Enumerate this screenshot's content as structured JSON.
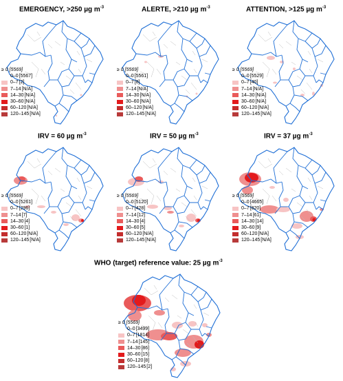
{
  "panels": [
    {
      "id": "emergency",
      "title": "EMERGENCY, >250 µg m",
      "title_sup": "-3",
      "legend_header": "≥ 0 [5569]",
      "classes": [
        {
          "range": "0–0",
          "count": "[5567]"
        },
        {
          "range": "0–7",
          "count": "[2]"
        },
        {
          "range": "7–14",
          "count": "[N/A]"
        },
        {
          "range": "14–30",
          "count": "[N/A]"
        },
        {
          "range": "30–60",
          "count": "[N/A]"
        },
        {
          "range": "60–120",
          "count": "[N/A]"
        },
        {
          "range": "120–145",
          "count": "[N/A]"
        }
      ]
    },
    {
      "id": "alerte",
      "title": "ALERTE, >210 µg m",
      "title_sup": "-3",
      "legend_header": "≥ 0 [5569]",
      "classes": [
        {
          "range": "0–0",
          "count": "[5561]"
        },
        {
          "range": "0–7",
          "count": "[8]"
        },
        {
          "range": "7–14",
          "count": "[N/A]"
        },
        {
          "range": "14–30",
          "count": "[N/A]"
        },
        {
          "range": "30–60",
          "count": "[N/A]"
        },
        {
          "range": "60–120",
          "count": "[N/A]"
        },
        {
          "range": "120–145",
          "count": "[N/A]"
        }
      ]
    },
    {
      "id": "attention",
      "title": "ATTENTION, >125 µg m",
      "title_sup": "-3",
      "legend_header": "≥ 0 [5569]",
      "classes": [
        {
          "range": "0–0",
          "count": "[5529]"
        },
        {
          "range": "0–7",
          "count": "[40]"
        },
        {
          "range": "7–14",
          "count": "[N/A]"
        },
        {
          "range": "14–30",
          "count": "[N/A]"
        },
        {
          "range": "30–60",
          "count": "[N/A]"
        },
        {
          "range": "60–120",
          "count": "[N/A]"
        },
        {
          "range": "120–145",
          "count": "[N/A]"
        }
      ]
    },
    {
      "id": "irv60",
      "title": "IRV = 60 µg m",
      "title_sup": "-3",
      "legend_header": "≥ 0 [5569]",
      "classes": [
        {
          "range": "0–0",
          "count": "[5261]"
        },
        {
          "range": "0–7",
          "count": "[296]"
        },
        {
          "range": "7–14",
          "count": "[7]"
        },
        {
          "range": "14–30",
          "count": "[4]"
        },
        {
          "range": "30–60",
          "count": "[1]"
        },
        {
          "range": "60–120",
          "count": "[N/A]"
        },
        {
          "range": "120–145",
          "count": "[N/A]"
        }
      ]
    },
    {
      "id": "irv50",
      "title": "IRV = 50 µg m",
      "title_sup": "-3",
      "legend_header": "≥ 0 [5569]",
      "classes": [
        {
          "range": "0–0",
          "count": "[5120]"
        },
        {
          "range": "0–7",
          "count": "[428]"
        },
        {
          "range": "7–14",
          "count": "[12]"
        },
        {
          "range": "14–30",
          "count": "[4]"
        },
        {
          "range": "30–60",
          "count": "[5]"
        },
        {
          "range": "60–120",
          "count": "[N/A]"
        },
        {
          "range": "120–145",
          "count": "[N/A]"
        }
      ]
    },
    {
      "id": "irv37",
      "title": "IRV = 37 µg m",
      "title_sup": "-3",
      "legend_header": "≥ 0 [5569]",
      "classes": [
        {
          "range": "0–0",
          "count": "[4665]"
        },
        {
          "range": "0–7",
          "count": "[820]"
        },
        {
          "range": "7–14",
          "count": "[61]"
        },
        {
          "range": "14–30",
          "count": "[14]"
        },
        {
          "range": "30–60",
          "count": "[9]"
        },
        {
          "range": "60–120",
          "count": "[N/A]"
        },
        {
          "range": "120–145",
          "count": "[N/A]"
        }
      ]
    },
    {
      "id": "who",
      "title": "WHO (target) reference value: 25 µg m",
      "title_sup": "-3",
      "legend_header": "≥ 0 [5569]",
      "classes": [
        {
          "range": "0–0",
          "count": "[3499]"
        },
        {
          "range": "0–7",
          "count": "[1814]"
        },
        {
          "range": "7–14",
          "count": "[145]"
        },
        {
          "range": "14–30",
          "count": "[86]"
        },
        {
          "range": "30–60",
          "count": "[15]"
        },
        {
          "range": "60–120",
          "count": "[8]"
        },
        {
          "range": "120–145",
          "count": "[2]"
        }
      ]
    }
  ],
  "colors": {
    "class_swatches": [
      "#ffffff",
      "#f7c4c4",
      "#ef8f8f",
      "#e95a5a",
      "#e31a1c",
      "#c42d2d",
      "#b83a3a"
    ],
    "state_border": "#1f6fd6",
    "municipality_border": "#bdbdbd"
  }
}
